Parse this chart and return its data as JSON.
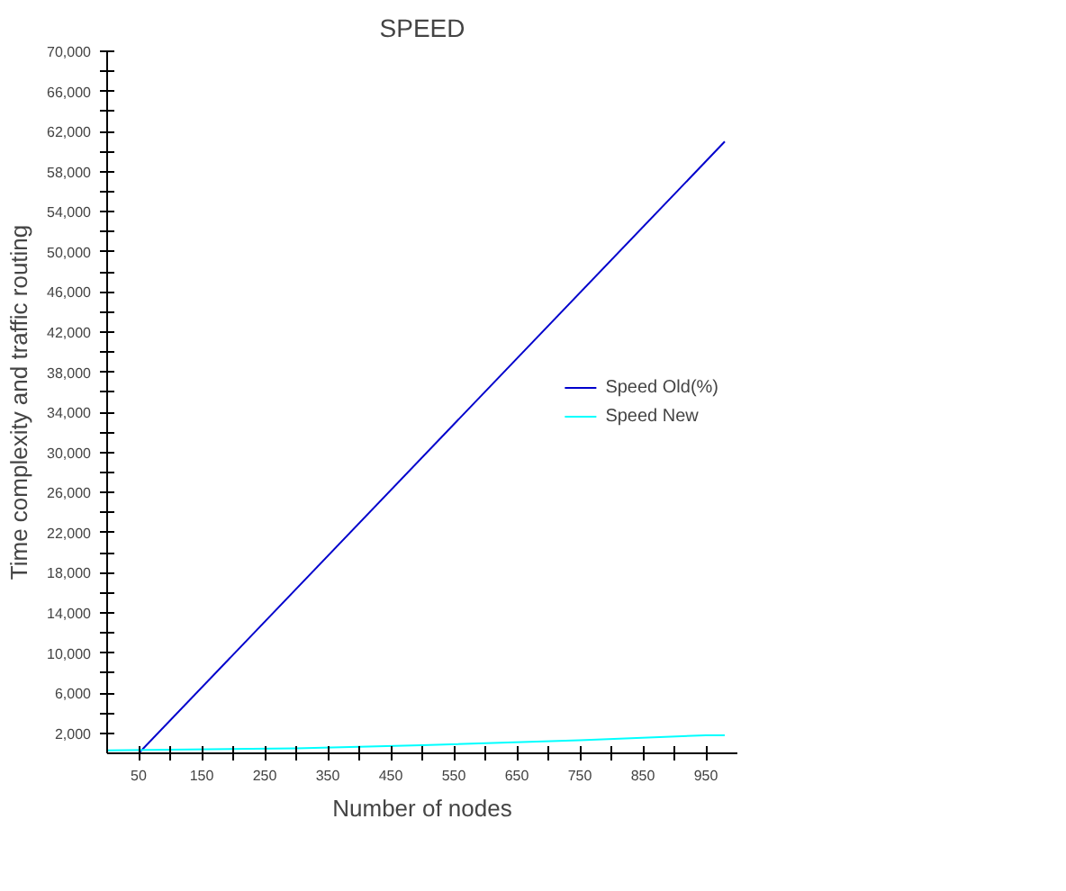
{
  "chart_data": {
    "type": "line",
    "title": "SPEED",
    "xlabel": "Number of nodes",
    "ylabel": "Time complexity and traffic routing",
    "xlim": [
      0,
      1000
    ],
    "ylim": [
      0,
      70000
    ],
    "xticks": [
      50,
      {
        "value": 100,
        "label": null
      },
      150,
      {
        "value": 200,
        "label": null
      },
      250,
      {
        "value": 300,
        "label": null
      },
      350,
      {
        "value": 400,
        "label": null
      },
      450,
      {
        "value": 500,
        "label": null
      },
      550,
      {
        "value": 600,
        "label": null
      },
      650,
      {
        "value": 700,
        "label": null
      },
      750,
      {
        "value": 800,
        "label": null
      },
      850,
      {
        "value": 900,
        "label": null
      },
      950
    ],
    "yticks": [
      {
        "value": 2000,
        "label": "2,000"
      },
      {
        "value": 4000,
        "label": null
      },
      {
        "value": 6000,
        "label": "6,000"
      },
      {
        "value": 8000,
        "label": null
      },
      {
        "value": 10000,
        "label": "10,000"
      },
      {
        "value": 12000,
        "label": null
      },
      {
        "value": 14000,
        "label": "14,000"
      },
      {
        "value": 16000,
        "label": null
      },
      {
        "value": 18000,
        "label": "18,000"
      },
      {
        "value": 20000,
        "label": null
      },
      {
        "value": 22000,
        "label": "22,000"
      },
      {
        "value": 24000,
        "label": null
      },
      {
        "value": 26000,
        "label": "26,000"
      },
      {
        "value": 28000,
        "label": null
      },
      {
        "value": 30000,
        "label": "30,000"
      },
      {
        "value": 32000,
        "label": null
      },
      {
        "value": 34000,
        "label": "34,000"
      },
      {
        "value": 36000,
        "label": null
      },
      {
        "value": 38000,
        "label": "38,000"
      },
      {
        "value": 40000,
        "label": null
      },
      {
        "value": 42000,
        "label": "42,000"
      },
      {
        "value": 44000,
        "label": null
      },
      {
        "value": 46000,
        "label": "46,000"
      },
      {
        "value": 48000,
        "label": null
      },
      {
        "value": 50000,
        "label": "50,000"
      },
      {
        "value": 52000,
        "label": null
      },
      {
        "value": 54000,
        "label": "54,000"
      },
      {
        "value": 56000,
        "label": null
      },
      {
        "value": 58000,
        "label": "58,000"
      },
      {
        "value": 60000,
        "label": null
      },
      {
        "value": 62000,
        "label": "62,000"
      },
      {
        "value": 64000,
        "label": null
      },
      {
        "value": 66000,
        "label": "66,000"
      },
      {
        "value": 68000,
        "label": null
      },
      {
        "value": 70000,
        "label": "70,000"
      }
    ],
    "grid": false,
    "legend": "right",
    "marker": "none",
    "line_style": "solid",
    "series": [
      {
        "name": "Speed Old(%)",
        "color": "#0000cc",
        "x": [
          50,
          980
        ],
        "values": [
          0,
          61000
        ]
      },
      {
        "name": "Speed New",
        "color": "#00ffff",
        "x": [
          0,
          300,
          500,
          750,
          950,
          980
        ],
        "values": [
          300,
          500,
          800,
          1300,
          1800,
          1800
        ]
      }
    ]
  }
}
